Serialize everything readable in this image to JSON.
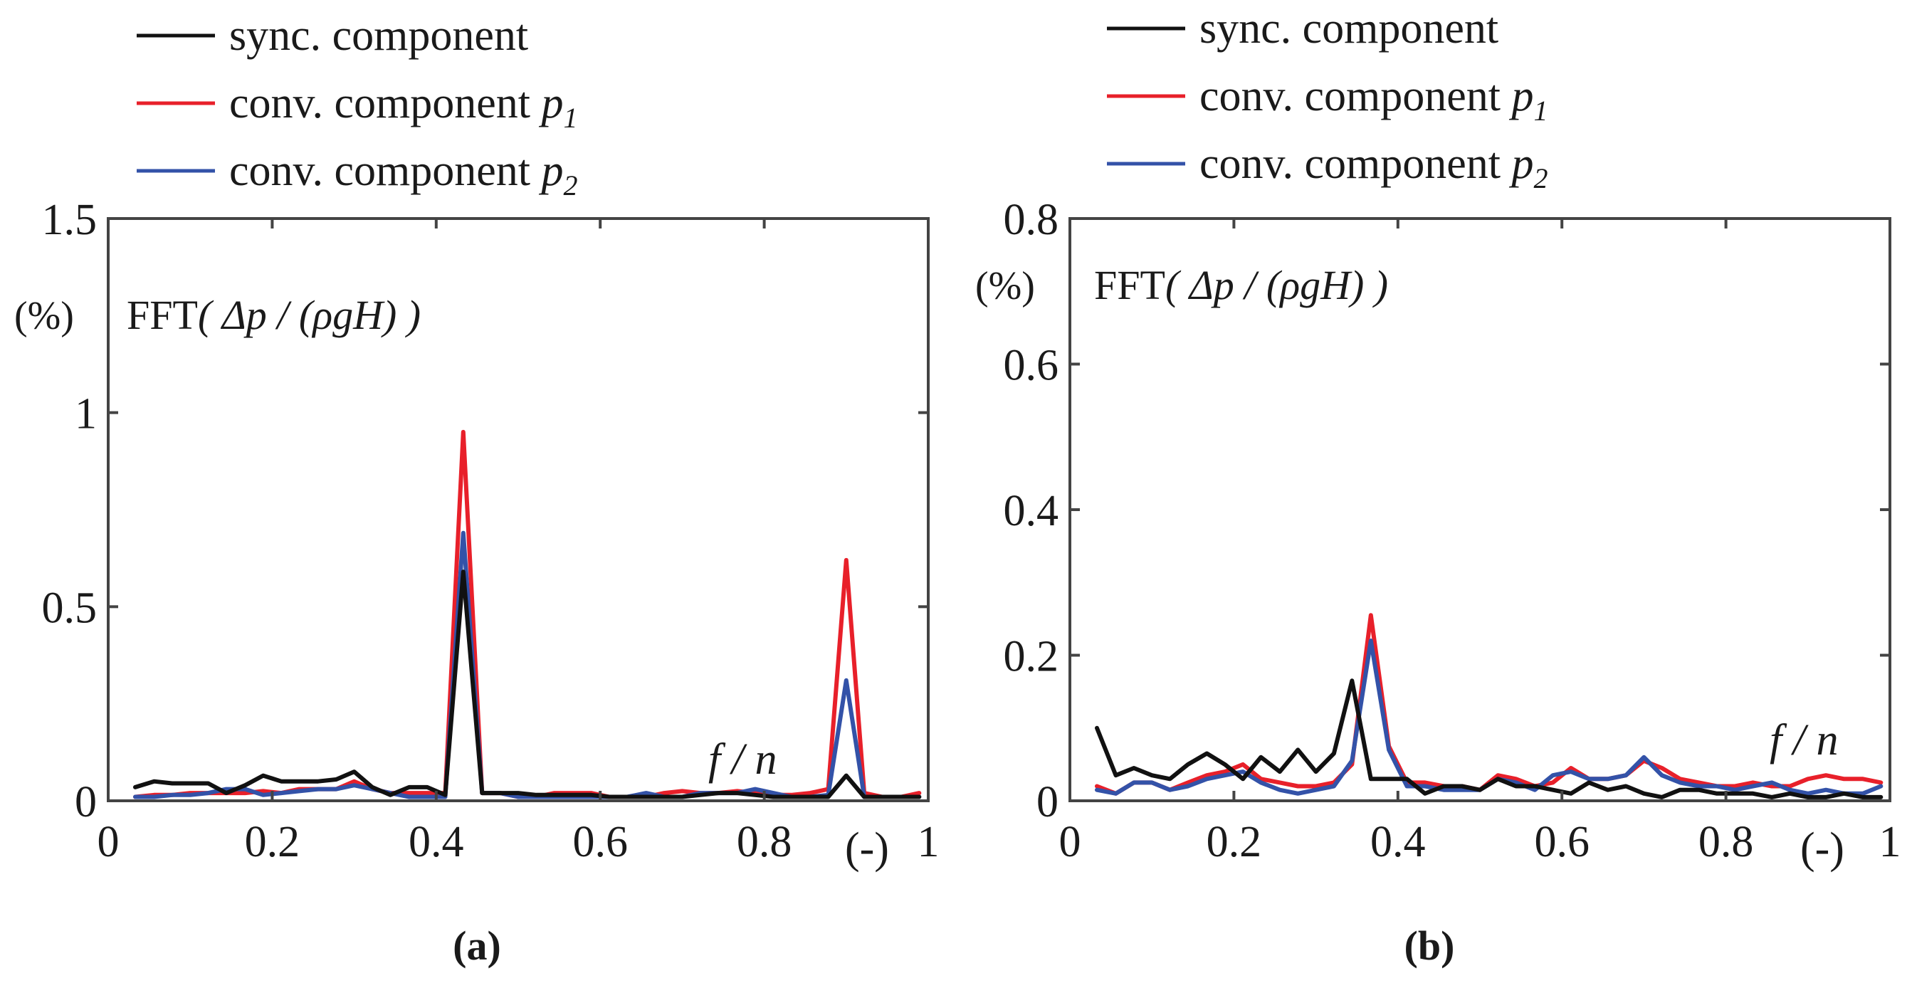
{
  "figure": {
    "width_note": "two FFT spectra panels"
  },
  "chart_data": [
    {
      "panel_id": "a",
      "type": "line",
      "caption": "(a)",
      "xlim": [
        0,
        1
      ],
      "ylim": [
        0,
        1.5
      ],
      "xticks": [
        "0",
        "0.2",
        "0.4",
        "0.6",
        "0.8",
        "1"
      ],
      "xtick_values": [
        0,
        0.2,
        0.4,
        0.6,
        0.8,
        1
      ],
      "yticks": [
        "0",
        "0.5",
        "1",
        "1.5"
      ],
      "ytick_values": [
        0,
        0.5,
        1,
        1.5
      ],
      "yunit": "(%)",
      "xunit": "(-)",
      "title_text": "FFT",
      "title_expr": "( Δp / (ρgH) )",
      "xlabel": "f / n",
      "legend": [
        {
          "name": "sync. component",
          "color": "#111111"
        },
        {
          "name": "conv. component ",
          "sub": "p",
          "index": "1",
          "color": "#e8202a"
        },
        {
          "name": "conv. component ",
          "sub": "p",
          "index": "2",
          "color": "#3352a8"
        }
      ],
      "x": [
        0.033,
        0.056,
        0.078,
        0.1,
        0.122,
        0.144,
        0.167,
        0.189,
        0.211,
        0.233,
        0.256,
        0.278,
        0.3,
        0.322,
        0.344,
        0.367,
        0.389,
        0.411,
        0.433,
        0.456,
        0.478,
        0.5,
        0.522,
        0.544,
        0.567,
        0.589,
        0.611,
        0.633,
        0.656,
        0.678,
        0.7,
        0.722,
        0.744,
        0.767,
        0.789,
        0.811,
        0.833,
        0.856,
        0.878,
        0.9,
        0.922,
        0.944,
        0.967,
        0.989
      ],
      "series": [
        {
          "name": "conv. component p1",
          "color": "#e8202a",
          "values": [
            0.01,
            0.015,
            0.015,
            0.02,
            0.02,
            0.02,
            0.02,
            0.025,
            0.02,
            0.03,
            0.03,
            0.03,
            0.05,
            0.03,
            0.02,
            0.02,
            0.02,
            0.02,
            0.95,
            0.02,
            0.02,
            0.01,
            0.01,
            0.02,
            0.02,
            0.02,
            0.01,
            0.01,
            0.01,
            0.02,
            0.025,
            0.02,
            0.02,
            0.025,
            0.02,
            0.015,
            0.015,
            0.02,
            0.03,
            0.62,
            0.02,
            0.01,
            0.01,
            0.02
          ]
        },
        {
          "name": "conv. component p2",
          "color": "#3352a8",
          "values": [
            0.01,
            0.01,
            0.015,
            0.015,
            0.02,
            0.03,
            0.03,
            0.015,
            0.02,
            0.025,
            0.03,
            0.03,
            0.04,
            0.03,
            0.02,
            0.01,
            0.01,
            0.01,
            0.69,
            0.02,
            0.02,
            0.01,
            0.01,
            0.01,
            0.01,
            0.01,
            0.01,
            0.01,
            0.02,
            0.01,
            0.01,
            0.02,
            0.02,
            0.02,
            0.03,
            0.02,
            0.01,
            0.01,
            0.015,
            0.31,
            0.01,
            0.01,
            0.01,
            0.01
          ]
        },
        {
          "name": "sync. component",
          "color": "#111111",
          "values": [
            0.035,
            0.05,
            0.045,
            0.045,
            0.045,
            0.02,
            0.04,
            0.065,
            0.05,
            0.05,
            0.05,
            0.055,
            0.075,
            0.035,
            0.015,
            0.035,
            0.035,
            0.015,
            0.59,
            0.02,
            0.02,
            0.02,
            0.015,
            0.015,
            0.015,
            0.015,
            0.01,
            0.01,
            0.01,
            0.01,
            0.01,
            0.015,
            0.02,
            0.02,
            0.015,
            0.01,
            0.01,
            0.01,
            0.01,
            0.065,
            0.01,
            0.01,
            0.01,
            0.01
          ]
        }
      ]
    },
    {
      "panel_id": "b",
      "type": "line",
      "caption": "(b)",
      "xlim": [
        0,
        1
      ],
      "ylim": [
        0,
        0.8
      ],
      "xticks": [
        "0",
        "0.2",
        "0.4",
        "0.6",
        "0.8",
        "1"
      ],
      "xtick_values": [
        0,
        0.2,
        0.4,
        0.6,
        0.8,
        1
      ],
      "yticks": [
        "0",
        "0.2",
        "0.4",
        "0.6",
        "0.8"
      ],
      "ytick_values": [
        0,
        0.2,
        0.4,
        0.6,
        0.8
      ],
      "yunit": "(%)",
      "xunit": "(-)",
      "title_text": "FFT",
      "title_expr": "( Δp / (ρgH) )",
      "xlabel": "f / n",
      "legend": [
        {
          "name": "sync. component",
          "color": "#111111"
        },
        {
          "name": "conv. component ",
          "sub": "p",
          "index": "1",
          "color": "#e8202a"
        },
        {
          "name": "conv. component ",
          "sub": "p",
          "index": "2",
          "color": "#3352a8"
        }
      ],
      "x": [
        0.033,
        0.056,
        0.078,
        0.1,
        0.122,
        0.144,
        0.167,
        0.189,
        0.211,
        0.233,
        0.256,
        0.278,
        0.3,
        0.322,
        0.344,
        0.367,
        0.389,
        0.411,
        0.433,
        0.456,
        0.478,
        0.5,
        0.522,
        0.544,
        0.567,
        0.589,
        0.611,
        0.633,
        0.656,
        0.678,
        0.7,
        0.722,
        0.744,
        0.767,
        0.789,
        0.811,
        0.833,
        0.856,
        0.878,
        0.9,
        0.922,
        0.944,
        0.967,
        0.989
      ],
      "series": [
        {
          "name": "conv. component p1",
          "color": "#e8202a",
          "values": [
            0.02,
            0.01,
            0.025,
            0.025,
            0.015,
            0.025,
            0.035,
            0.04,
            0.05,
            0.03,
            0.025,
            0.02,
            0.02,
            0.025,
            0.05,
            0.255,
            0.075,
            0.025,
            0.025,
            0.02,
            0.02,
            0.015,
            0.035,
            0.03,
            0.02,
            0.025,
            0.045,
            0.03,
            0.03,
            0.035,
            0.055,
            0.045,
            0.03,
            0.025,
            0.02,
            0.02,
            0.025,
            0.02,
            0.02,
            0.03,
            0.035,
            0.03,
            0.03,
            0.025
          ]
        },
        {
          "name": "conv. component p2",
          "color": "#3352a8",
          "values": [
            0.015,
            0.01,
            0.025,
            0.025,
            0.015,
            0.02,
            0.03,
            0.035,
            0.04,
            0.025,
            0.015,
            0.01,
            0.015,
            0.02,
            0.055,
            0.22,
            0.07,
            0.02,
            0.02,
            0.015,
            0.015,
            0.015,
            0.03,
            0.025,
            0.015,
            0.035,
            0.04,
            0.03,
            0.03,
            0.035,
            0.06,
            0.035,
            0.025,
            0.02,
            0.02,
            0.015,
            0.02,
            0.025,
            0.015,
            0.01,
            0.015,
            0.01,
            0.01,
            0.02
          ]
        },
        {
          "name": "sync. component",
          "color": "#111111",
          "values": [
            0.1,
            0.035,
            0.045,
            0.035,
            0.03,
            0.05,
            0.065,
            0.05,
            0.03,
            0.06,
            0.04,
            0.07,
            0.04,
            0.065,
            0.165,
            0.03,
            0.03,
            0.03,
            0.01,
            0.02,
            0.02,
            0.015,
            0.03,
            0.02,
            0.02,
            0.015,
            0.01,
            0.025,
            0.015,
            0.02,
            0.01,
            0.005,
            0.015,
            0.015,
            0.01,
            0.01,
            0.01,
            0.005,
            0.01,
            0.005,
            0.005,
            0.01,
            0.005,
            0.005
          ]
        }
      ]
    }
  ]
}
